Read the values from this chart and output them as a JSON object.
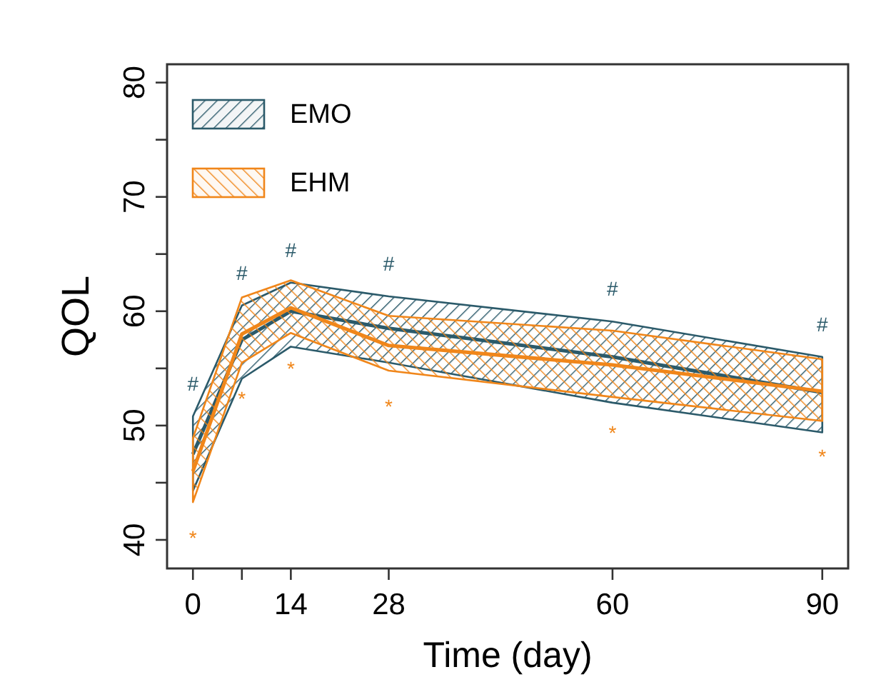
{
  "chart_data": {
    "type": "line",
    "xlabel": "Time (day)",
    "ylabel": "QOL",
    "x": [
      0,
      7,
      14,
      28,
      60,
      90
    ],
    "xlim": [
      -3.7,
      93.7
    ],
    "ylim": [
      37.5,
      81.6
    ],
    "xticks": [
      0,
      {
        "value": 7,
        "label": null
      },
      14,
      28,
      60,
      90
    ],
    "yticks": [
      40,
      {
        "value": 45,
        "label": null
      },
      50,
      {
        "value": 55,
        "label": null
      },
      60,
      {
        "value": 65,
        "label": null
      },
      70,
      {
        "value": 75,
        "label": null
      },
      80
    ],
    "series": [
      {
        "name": "EMO",
        "color": "#2b5a6a",
        "values": [
          47.5,
          57.5,
          60,
          58.5,
          56,
          52.9
        ],
        "lower": [
          44.3,
          54.1,
          56.9,
          55.5,
          52,
          49.4
        ],
        "upper": [
          50.8,
          60.5,
          62.5,
          61.3,
          59.1,
          56
        ]
      },
      {
        "name": "EHM",
        "color": "#f0861a",
        "values": [
          46,
          58,
          60.3,
          57,
          55.3,
          53
        ],
        "lower": [
          43.3,
          55.5,
          58.1,
          54.8,
          52.5,
          50.4
        ],
        "upper": [
          48.9,
          61.2,
          62.7,
          59.6,
          58.3,
          55.8
        ]
      }
    ],
    "annotations": [
      "#",
      "#",
      "#",
      "#",
      "#",
      "#",
      "*",
      "*",
      "*",
      "*",
      "*",
      "*"
    ],
    "legend": "top left",
    "grid": false,
    "marker": "none",
    "line_style": "solid"
  }
}
